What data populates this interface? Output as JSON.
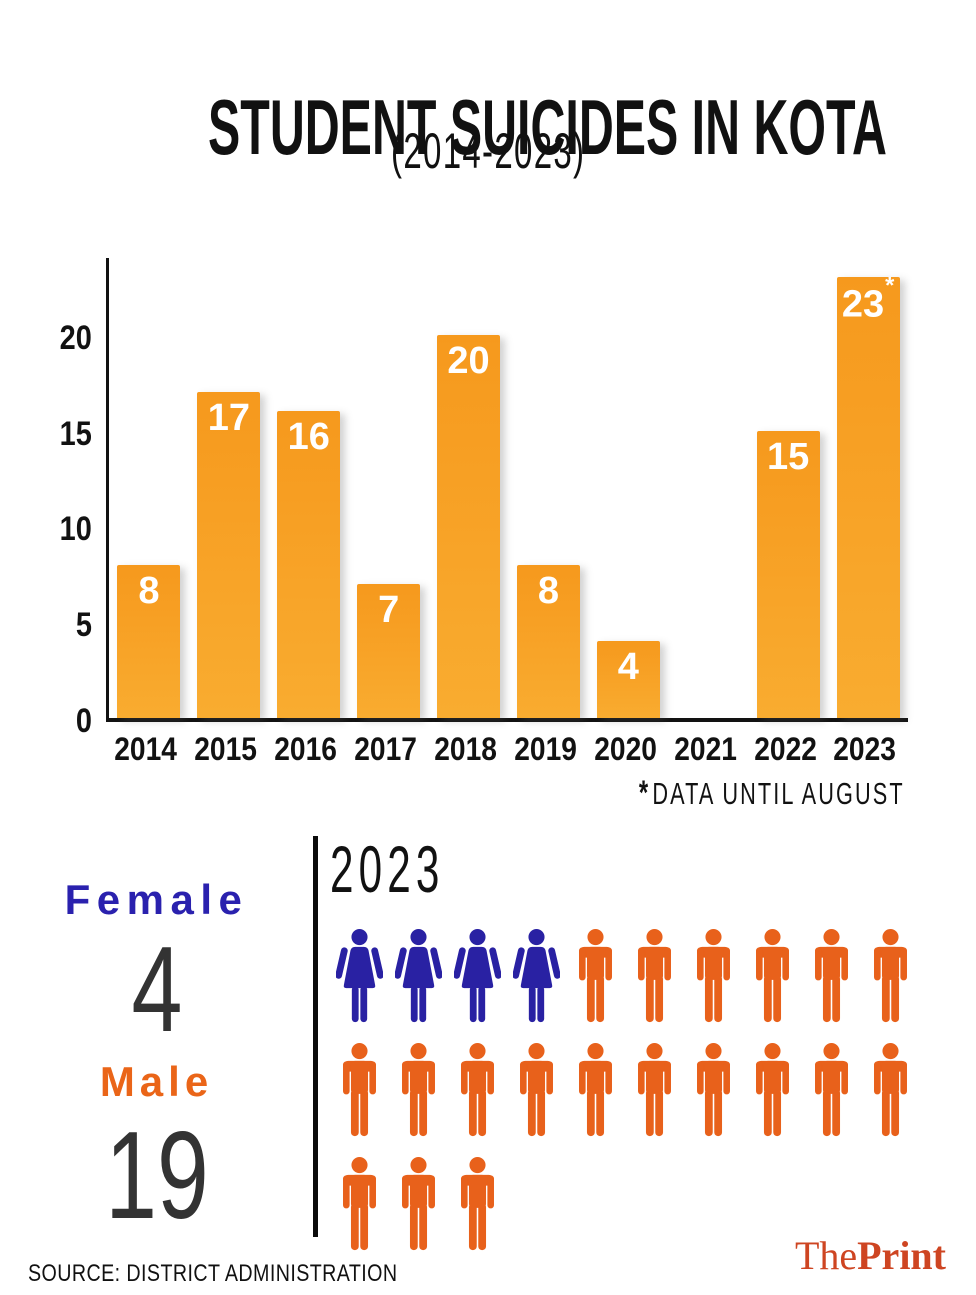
{
  "header": {
    "title": "STUDENT SUICIDES IN KOTA",
    "subtitle": "(2014-2023)"
  },
  "chart_data": {
    "type": "bar",
    "title": "STUDENT SUICIDES IN KOTA",
    "subtitle": "(2014-2023)",
    "categories": [
      "2014",
      "2015",
      "2016",
      "2017",
      "2018",
      "2019",
      "2020",
      "2021",
      "2022",
      "2023"
    ],
    "values": [
      8,
      17,
      16,
      7,
      20,
      8,
      4,
      null,
      15,
      23
    ],
    "annotated_year": "2023",
    "annotation_marker": "*",
    "note_marker": "*",
    "note_text": "DATA UNTIL AUGUST",
    "yticks": [
      0,
      5,
      10,
      15,
      20
    ],
    "ylim": [
      0,
      24
    ],
    "grid": false,
    "legend": false,
    "bar_color_top": "#F6991D",
    "bar_color_bottom": "#F9AC30",
    "value_label_color": "#ffffff"
  },
  "breakdown": {
    "year": "2023",
    "female_label": "Female",
    "female_count": 4,
    "male_label": "Male",
    "male_count": 19,
    "female_color": "#2921A3",
    "male_color": "#E8611B",
    "icons_per_row": 10,
    "icons": {
      "female": "female-person-icon",
      "male": "male-person-icon"
    }
  },
  "footer": {
    "source": "SOURCE: DISTRICT ADMINISTRATION",
    "logo_the": "The",
    "logo_print": "Print",
    "logo_color": "#CE4522"
  }
}
